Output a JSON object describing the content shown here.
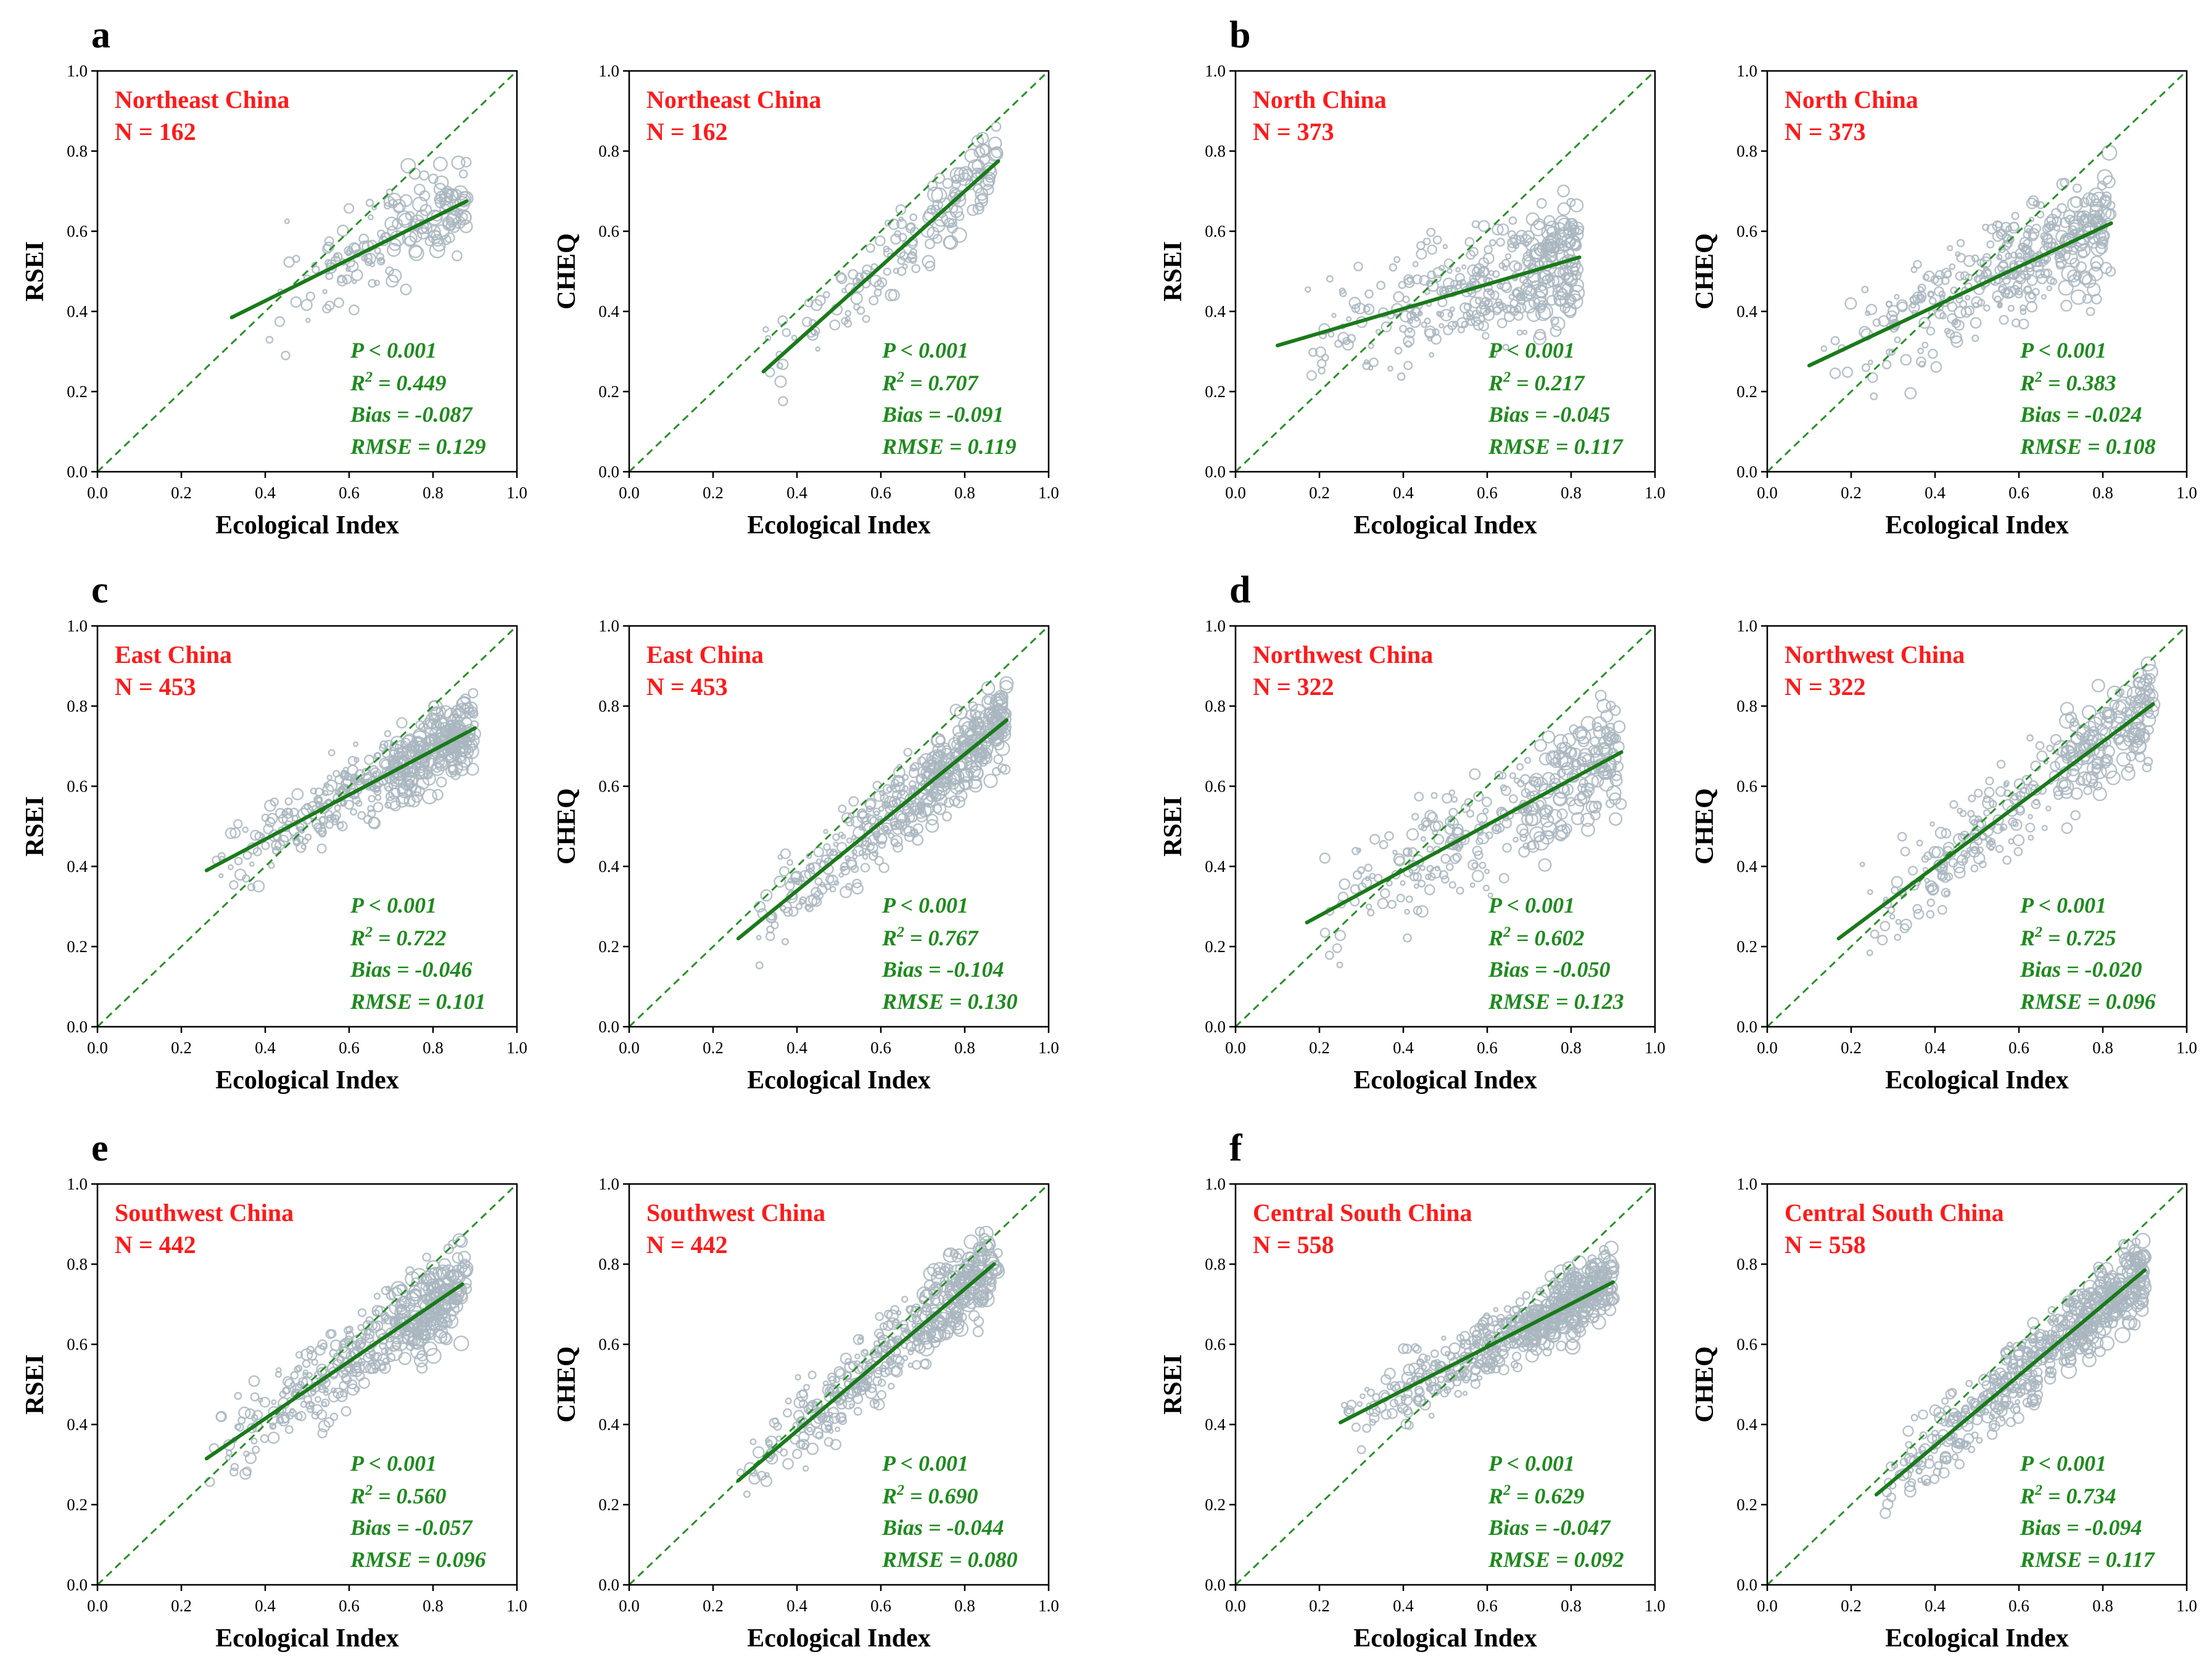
{
  "figure": {
    "colors": {
      "points": "#a9b6bf",
      "fit": "#1a7a1a",
      "diag": "#2a8f2a",
      "label": "#ff1a1a",
      "stat": "#1e8a1e"
    }
  },
  "chart_data": [
    {
      "type": "scatter",
      "panel": "a",
      "region": "Northeast China",
      "n": "N = 162",
      "xlabel": "Ecological Index",
      "ylabel": "RSEI",
      "xlim": [
        0,
        1
      ],
      "ylim": [
        0,
        1
      ],
      "xticks": [
        "0.0",
        "0.2",
        "0.4",
        "0.6",
        "0.8",
        "1.0"
      ],
      "yticks": [
        "0.0",
        "0.2",
        "0.4",
        "0.6",
        "0.8",
        "1.0"
      ],
      "fit": {
        "x": [
          0.32,
          0.88
        ],
        "y": [
          0.385,
          0.675
        ]
      },
      "stats": {
        "p": "P < 0.001",
        "r2": "0.449",
        "bias": "Bias = -0.087",
        "rmse": "RMSE = 0.129"
      },
      "cloud": {
        "xmin": 0.32,
        "xmax": 0.88,
        "spread": 0.06,
        "count": 162,
        "seed": 11
      }
    },
    {
      "type": "scatter",
      "panel": "",
      "region": "Northeast China",
      "n": "N = 162",
      "xlabel": "Ecological Index",
      "ylabel": "CHEQ",
      "xlim": [
        0,
        1
      ],
      "ylim": [
        0,
        1
      ],
      "xticks": [
        "0.0",
        "0.2",
        "0.4",
        "0.6",
        "0.8",
        "1.0"
      ],
      "yticks": [
        "0.0",
        "0.2",
        "0.4",
        "0.6",
        "0.8",
        "1.0"
      ],
      "fit": {
        "x": [
          0.32,
          0.88
        ],
        "y": [
          0.25,
          0.775
        ]
      },
      "stats": {
        "p": "P < 0.001",
        "r2": "0.707",
        "bias": "Bias = -0.091",
        "rmse": "RMSE = 0.119"
      },
      "cloud": {
        "xmin": 0.3,
        "xmax": 0.88,
        "spread": 0.05,
        "count": 162,
        "seed": 12
      }
    },
    {
      "type": "scatter",
      "panel": "b",
      "region": "North China",
      "n": "N = 373",
      "xlabel": "Ecological Index",
      "ylabel": "RSEI",
      "xlim": [
        0,
        1
      ],
      "ylim": [
        0,
        1
      ],
      "xticks": [
        "0.0",
        "0.2",
        "0.4",
        "0.6",
        "0.8",
        "1.0"
      ],
      "yticks": [
        "0.0",
        "0.2",
        "0.4",
        "0.6",
        "0.8",
        "1.0"
      ],
      "fit": {
        "x": [
          0.1,
          0.82
        ],
        "y": [
          0.315,
          0.535
        ]
      },
      "stats": {
        "p": "P < 0.001",
        "r2": "0.217",
        "bias": "Bias = -0.045",
        "rmse": "RMSE = 0.117"
      },
      "cloud": {
        "xmin": 0.12,
        "xmax": 0.82,
        "spread": 0.07,
        "count": 373,
        "seed": 13
      }
    },
    {
      "type": "scatter",
      "panel": "",
      "region": "North China",
      "n": "N = 373",
      "xlabel": "Ecological Index",
      "ylabel": "CHEQ",
      "xlim": [
        0,
        1
      ],
      "ylim": [
        0,
        1
      ],
      "xticks": [
        "0.0",
        "0.2",
        "0.4",
        "0.6",
        "0.8",
        "1.0"
      ],
      "yticks": [
        "0.0",
        "0.2",
        "0.4",
        "0.6",
        "0.8",
        "1.0"
      ],
      "fit": {
        "x": [
          0.1,
          0.82
        ],
        "y": [
          0.265,
          0.62
        ]
      },
      "stats": {
        "p": "P < 0.001",
        "r2": "0.383",
        "bias": "Bias = -0.024",
        "rmse": "RMSE = 0.108"
      },
      "cloud": {
        "xmin": 0.12,
        "xmax": 0.82,
        "spread": 0.07,
        "count": 373,
        "seed": 14
      }
    },
    {
      "type": "scatter",
      "panel": "c",
      "region": "East China",
      "n": "N = 453",
      "xlabel": "Ecological Index",
      "ylabel": "RSEI",
      "xlim": [
        0,
        1
      ],
      "ylim": [
        0,
        1
      ],
      "xticks": [
        "0.0",
        "0.2",
        "0.4",
        "0.6",
        "0.8",
        "1.0"
      ],
      "yticks": [
        "0.0",
        "0.2",
        "0.4",
        "0.6",
        "0.8",
        "1.0"
      ],
      "fit": {
        "x": [
          0.26,
          0.9
        ],
        "y": [
          0.39,
          0.745
        ]
      },
      "stats": {
        "p": "P < 0.001",
        "r2": "0.722",
        "bias": "Bias = -0.046",
        "rmse": "RMSE = 0.101"
      },
      "cloud": {
        "xmin": 0.26,
        "xmax": 0.9,
        "spread": 0.045,
        "count": 453,
        "seed": 15
      }
    },
    {
      "type": "scatter",
      "panel": "",
      "region": "East China",
      "n": "N = 453",
      "xlabel": "Ecological Index",
      "ylabel": "CHEQ",
      "xlim": [
        0,
        1
      ],
      "ylim": [
        0,
        1
      ],
      "xticks": [
        "0.0",
        "0.2",
        "0.4",
        "0.6",
        "0.8",
        "1.0"
      ],
      "yticks": [
        "0.0",
        "0.2",
        "0.4",
        "0.6",
        "0.8",
        "1.0"
      ],
      "fit": {
        "x": [
          0.26,
          0.9
        ],
        "y": [
          0.22,
          0.765
        ]
      },
      "stats": {
        "p": "P < 0.001",
        "r2": "0.767",
        "bias": "Bias = -0.104",
        "rmse": "RMSE = 0.130"
      },
      "cloud": {
        "xmin": 0.26,
        "xmax": 0.9,
        "spread": 0.05,
        "count": 453,
        "seed": 16
      }
    },
    {
      "type": "scatter",
      "panel": "d",
      "region": "Northwest China",
      "n": "N = 322",
      "xlabel": "Ecological Index",
      "ylabel": "RSEI",
      "xlim": [
        0,
        1
      ],
      "ylim": [
        0,
        1
      ],
      "xticks": [
        "0.0",
        "0.2",
        "0.4",
        "0.6",
        "0.8",
        "1.0"
      ],
      "yticks": [
        "0.0",
        "0.2",
        "0.4",
        "0.6",
        "0.8",
        "1.0"
      ],
      "fit": {
        "x": [
          0.17,
          0.92
        ],
        "y": [
          0.26,
          0.685
        ]
      },
      "stats": {
        "p": "P < 0.001",
        "r2": "0.602",
        "bias": "Bias = -0.050",
        "rmse": "RMSE = 0.123"
      },
      "cloud": {
        "xmin": 0.17,
        "xmax": 0.92,
        "spread": 0.07,
        "count": 322,
        "seed": 17
      }
    },
    {
      "type": "scatter",
      "panel": "",
      "region": "Northwest China",
      "n": "N = 322",
      "xlabel": "Ecological Index",
      "ylabel": "CHEQ",
      "xlim": [
        0,
        1
      ],
      "ylim": [
        0,
        1
      ],
      "xticks": [
        "0.0",
        "0.2",
        "0.4",
        "0.6",
        "0.8",
        "1.0"
      ],
      "yticks": [
        "0.0",
        "0.2",
        "0.4",
        "0.6",
        "0.8",
        "1.0"
      ],
      "fit": {
        "x": [
          0.17,
          0.92
        ],
        "y": [
          0.22,
          0.805
        ]
      },
      "stats": {
        "p": "P < 0.001",
        "r2": "0.725",
        "bias": "Bias = -0.020",
        "rmse": "RMSE = 0.096"
      },
      "cloud": {
        "xmin": 0.17,
        "xmax": 0.92,
        "spread": 0.06,
        "count": 322,
        "seed": 18
      }
    },
    {
      "type": "scatter",
      "panel": "e",
      "region": "Southwest China",
      "n": "N = 442",
      "xlabel": "Ecological Index",
      "ylabel": "RSEI",
      "xlim": [
        0,
        1
      ],
      "ylim": [
        0,
        1
      ],
      "xticks": [
        "0.0",
        "0.2",
        "0.4",
        "0.6",
        "0.8",
        "1.0"
      ],
      "yticks": [
        "0.0",
        "0.2",
        "0.4",
        "0.6",
        "0.8",
        "1.0"
      ],
      "fit": {
        "x": [
          0.26,
          0.87
        ],
        "y": [
          0.315,
          0.75
        ]
      },
      "stats": {
        "p": "P < 0.001",
        "r2": "0.560",
        "bias": "Bias = -0.057",
        "rmse": "RMSE = 0.096"
      },
      "cloud": {
        "xmin": 0.26,
        "xmax": 0.88,
        "spread": 0.055,
        "count": 442,
        "seed": 19
      }
    },
    {
      "type": "scatter",
      "panel": "",
      "region": "Southwest China",
      "n": "N = 442",
      "xlabel": "Ecological Index",
      "ylabel": "CHEQ",
      "xlim": [
        0,
        1
      ],
      "ylim": [
        0,
        1
      ],
      "xticks": [
        "0.0",
        "0.2",
        "0.4",
        "0.6",
        "0.8",
        "1.0"
      ],
      "yticks": [
        "0.0",
        "0.2",
        "0.4",
        "0.6",
        "0.8",
        "1.0"
      ],
      "fit": {
        "x": [
          0.26,
          0.87
        ],
        "y": [
          0.26,
          0.8
        ]
      },
      "stats": {
        "p": "P < 0.001",
        "r2": "0.690",
        "bias": "Bias = -0.044",
        "rmse": "RMSE = 0.080"
      },
      "cloud": {
        "xmin": 0.26,
        "xmax": 0.88,
        "spread": 0.05,
        "count": 442,
        "seed": 20
      }
    },
    {
      "type": "scatter",
      "panel": "f",
      "region": "Central South China",
      "n": "N = 558",
      "xlabel": "Ecological Index",
      "ylabel": "RSEI",
      "xlim": [
        0,
        1
      ],
      "ylim": [
        0,
        1
      ],
      "xticks": [
        "0.0",
        "0.2",
        "0.4",
        "0.6",
        "0.8",
        "1.0"
      ],
      "yticks": [
        "0.0",
        "0.2",
        "0.4",
        "0.6",
        "0.8",
        "1.0"
      ],
      "fit": {
        "x": [
          0.25,
          0.9
        ],
        "y": [
          0.405,
          0.755
        ]
      },
      "stats": {
        "p": "P < 0.001",
        "r2": "0.629",
        "bias": "Bias = -0.047",
        "rmse": "RMSE = 0.092"
      },
      "cloud": {
        "xmin": 0.25,
        "xmax": 0.9,
        "spread": 0.04,
        "count": 558,
        "seed": 21
      }
    },
    {
      "type": "scatter",
      "panel": "",
      "region": "Central South China",
      "n": "N = 558",
      "xlabel": "Ecological Index",
      "ylabel": "CHEQ",
      "xlim": [
        0,
        1
      ],
      "ylim": [
        0,
        1
      ],
      "xticks": [
        "0.0",
        "0.2",
        "0.4",
        "0.6",
        "0.8",
        "1.0"
      ],
      "yticks": [
        "0.0",
        "0.2",
        "0.4",
        "0.6",
        "0.8",
        "1.0"
      ],
      "fit": {
        "x": [
          0.26,
          0.9
        ],
        "y": [
          0.225,
          0.785
        ]
      },
      "stats": {
        "p": "P < 0.001",
        "r2": "0.734",
        "bias": "Bias = -0.094",
        "rmse": "RMSE = 0.117"
      },
      "cloud": {
        "xmin": 0.26,
        "xmax": 0.9,
        "spread": 0.045,
        "count": 558,
        "seed": 22
      }
    }
  ]
}
